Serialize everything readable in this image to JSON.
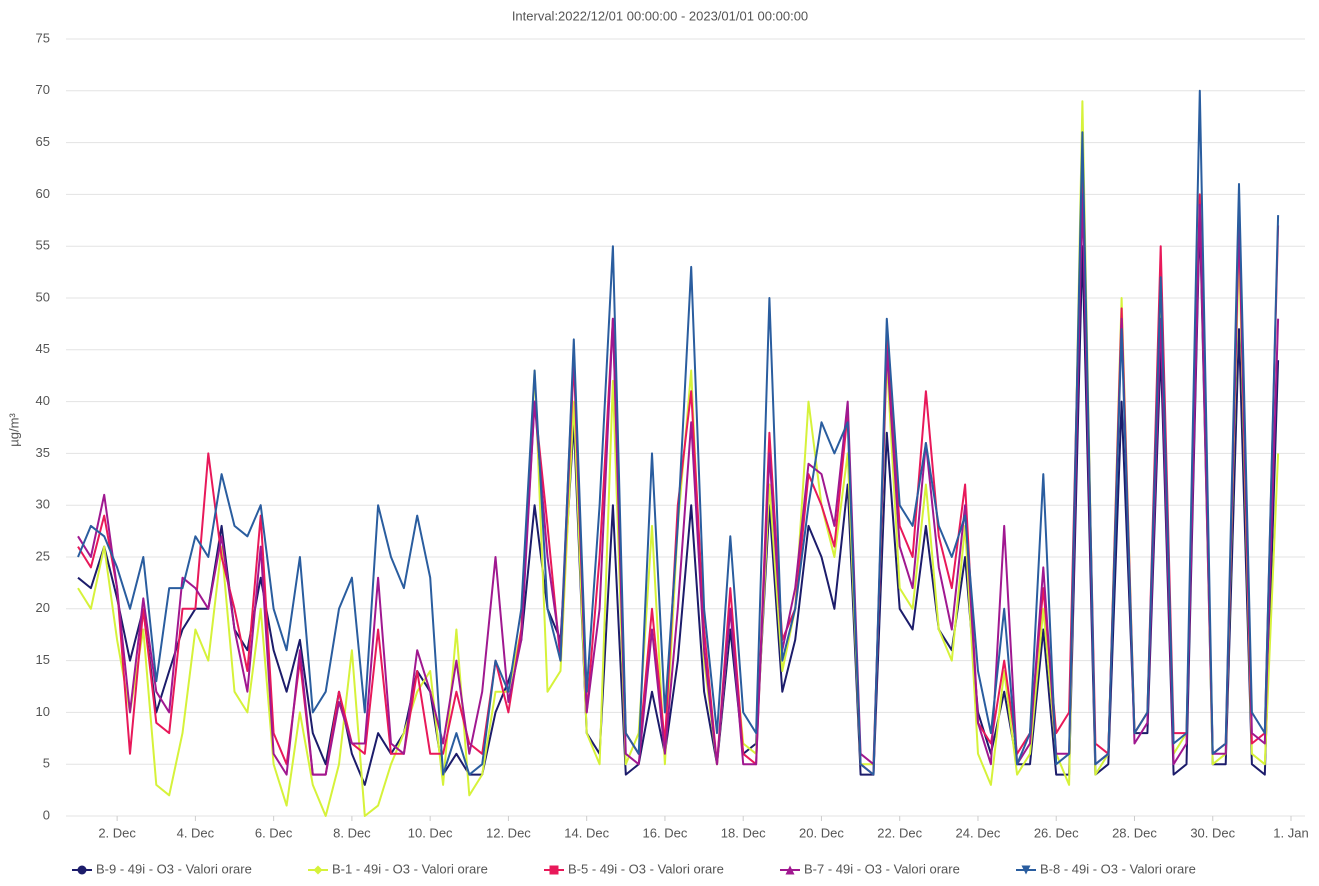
{
  "chart_data": {
    "type": "line",
    "title": "Interval:2022/12/01 00:00:00 - 2023/01/01 00:00:00",
    "y_label": "µg/m³",
    "xlim": [
      1,
      32
    ],
    "xticks": [
      {
        "value": 2,
        "label": "2. Dec"
      },
      {
        "value": 4,
        "label": "4. Dec"
      },
      {
        "value": 6,
        "label": "6. Dec"
      },
      {
        "value": 8,
        "label": "8. Dec"
      },
      {
        "value": 10,
        "label": "10. Dec"
      },
      {
        "value": 12,
        "label": "12. Dec"
      },
      {
        "value": 14,
        "label": "14. Dec"
      },
      {
        "value": 16,
        "label": "16. Dec"
      },
      {
        "value": 18,
        "label": "18. Dec"
      },
      {
        "value": 20,
        "label": "20. Dec"
      },
      {
        "value": 22,
        "label": "22. Dec"
      },
      {
        "value": 24,
        "label": "24. Dec"
      },
      {
        "value": 26,
        "label": "26. Dec"
      },
      {
        "value": 28,
        "label": "28. Dec"
      },
      {
        "value": 30,
        "label": "30. Dec"
      },
      {
        "value": 32,
        "label": "1. Jan"
      }
    ],
    "ylim": [
      0,
      75
    ],
    "yticks": [
      0,
      5,
      10,
      15,
      20,
      25,
      30,
      35,
      40,
      45,
      50,
      55,
      60,
      65,
      70,
      75
    ],
    "grid": true,
    "legend": "bottom",
    "x": [
      1,
      1.33,
      1.67,
      2,
      2.33,
      2.67,
      3,
      3.33,
      3.67,
      4,
      4.33,
      4.67,
      5,
      5.33,
      5.67,
      6,
      6.33,
      6.67,
      7,
      7.33,
      7.67,
      8,
      8.33,
      8.67,
      9,
      9.33,
      9.67,
      10,
      10.33,
      10.67,
      11,
      11.33,
      11.67,
      12,
      12.33,
      12.67,
      13,
      13.33,
      13.67,
      14,
      14.33,
      14.67,
      15,
      15.33,
      15.67,
      16,
      16.33,
      16.67,
      17,
      17.33,
      17.67,
      18,
      18.33,
      18.67,
      19,
      19.33,
      19.67,
      20,
      20.33,
      20.67,
      21,
      21.33,
      21.67,
      22,
      22.33,
      22.67,
      23,
      23.33,
      23.67,
      24,
      24.33,
      24.67,
      25,
      25.33,
      25.67,
      26,
      26.33,
      26.67,
      27,
      27.33,
      27.67,
      28,
      28.33,
      28.67,
      29,
      29.33,
      29.67,
      30,
      30.33,
      30.67,
      31,
      31.33,
      31.67
    ],
    "series": [
      {
        "name": "B-9 - 49i - O3 - Valori orare",
        "color": "#1c1c6b",
        "marker": "circle",
        "values": [
          23,
          22,
          26,
          21,
          15,
          20,
          10,
          14,
          18,
          20,
          20,
          28,
          18,
          16,
          23,
          16,
          12,
          17,
          8,
          5,
          12,
          6,
          3,
          8,
          6,
          8,
          14,
          12,
          4,
          6,
          4,
          4,
          10,
          13,
          17,
          30,
          20,
          17,
          38,
          8,
          6,
          30,
          4,
          5,
          12,
          6,
          15,
          30,
          12,
          5,
          18,
          6,
          7,
          30,
          12,
          17,
          28,
          25,
          20,
          32,
          4,
          4,
          37,
          20,
          18,
          28,
          18,
          16,
          25,
          10,
          6,
          12,
          5,
          5,
          18,
          4,
          4,
          55,
          4,
          5,
          40,
          8,
          8,
          45,
          4,
          5,
          58,
          5,
          5,
          47,
          5,
          4,
          44
        ]
      },
      {
        "name": "B-1 - 49i - O3 - Valori orare",
        "color": "#d6f23a",
        "marker": "diamond",
        "values": [
          22,
          20,
          26,
          17,
          10,
          18,
          3,
          2,
          8,
          18,
          15,
          26,
          12,
          10,
          20,
          5,
          1,
          10,
          3,
          0,
          5,
          16,
          0,
          1,
          5,
          8,
          12,
          14,
          3,
          18,
          2,
          4,
          12,
          12,
          18,
          43,
          12,
          14,
          40,
          8,
          5,
          42,
          5,
          8,
          28,
          5,
          28,
          43,
          15,
          5,
          20,
          7,
          6,
          32,
          14,
          20,
          40,
          30,
          25,
          35,
          5,
          5,
          44,
          22,
          20,
          32,
          18,
          15,
          28,
          6,
          3,
          14,
          4,
          6,
          20,
          6,
          3,
          69,
          4,
          6,
          50,
          8,
          10,
          49,
          6,
          8,
          60,
          5,
          6,
          55,
          6,
          5,
          35
        ]
      },
      {
        "name": "B-5 - 49i - O3 - Valori orare",
        "color": "#e8195a",
        "marker": "square",
        "values": [
          26,
          24,
          29,
          22,
          6,
          20,
          9,
          8,
          20,
          20,
          35,
          25,
          20,
          14,
          29,
          8,
          5,
          15,
          4,
          4,
          12,
          7,
          6,
          18,
          6,
          6,
          14,
          6,
          6,
          12,
          7,
          6,
          15,
          10,
          18,
          40,
          28,
          15,
          44,
          10,
          25,
          48,
          8,
          6,
          20,
          7,
          30,
          41,
          18,
          5,
          22,
          6,
          5,
          37,
          17,
          20,
          33,
          30,
          26,
          39,
          5,
          4,
          46,
          28,
          25,
          41,
          27,
          22,
          32,
          9,
          7,
          15,
          6,
          8,
          22,
          8,
          10,
          63,
          7,
          6,
          49,
          8,
          10,
          55,
          8,
          8,
          60,
          6,
          7,
          57,
          7,
          8,
          57
        ]
      },
      {
        "name": "B-7 - 49i - O3 - Valori orare",
        "color": "#a01890",
        "marker": "triangle-up",
        "values": [
          27,
          25,
          31,
          22,
          10,
          21,
          12,
          10,
          23,
          22,
          20,
          27,
          18,
          12,
          26,
          6,
          4,
          16,
          4,
          4,
          11,
          7,
          7,
          23,
          7,
          6,
          16,
          12,
          7,
          15,
          6,
          12,
          25,
          11,
          17,
          40,
          25,
          16,
          45,
          10,
          20,
          48,
          6,
          5,
          18,
          6,
          20,
          38,
          16,
          5,
          20,
          5,
          5,
          35,
          16,
          22,
          34,
          33,
          28,
          40,
          6,
          5,
          45,
          26,
          22,
          36,
          24,
          18,
          30,
          9,
          5,
          28,
          5,
          7,
          24,
          6,
          6,
          60,
          5,
          6,
          48,
          7,
          9,
          48,
          5,
          7,
          59,
          6,
          6,
          58,
          8,
          7,
          48
        ]
      },
      {
        "name": "B-8 - 49i - O3 - Valori orare",
        "color": "#2a5d9f",
        "marker": "triangle-down",
        "values": [
          25,
          28,
          27,
          24,
          20,
          25,
          13,
          22,
          22,
          27,
          25,
          33,
          28,
          27,
          30,
          20,
          16,
          25,
          10,
          12,
          20,
          23,
          10,
          30,
          25,
          22,
          29,
          23,
          4,
          8,
          4,
          5,
          15,
          12,
          20,
          43,
          20,
          15,
          46,
          12,
          30,
          55,
          8,
          6,
          35,
          10,
          28,
          53,
          20,
          8,
          27,
          10,
          8,
          50,
          15,
          20,
          30,
          38,
          35,
          38,
          5,
          4,
          48,
          30,
          28,
          36,
          28,
          25,
          29,
          14,
          8,
          20,
          5,
          8,
          33,
          5,
          6,
          66,
          5,
          6,
          47,
          8,
          10,
          52,
          7,
          8,
          70,
          6,
          7,
          61,
          10,
          8,
          58
        ]
      }
    ]
  }
}
